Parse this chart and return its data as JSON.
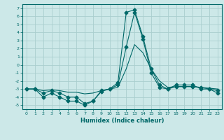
{
  "xlabel": "Humidex (Indice chaleur)",
  "x": [
    0,
    1,
    2,
    3,
    4,
    5,
    6,
    7,
    8,
    9,
    10,
    11,
    12,
    13,
    14,
    15,
    16,
    17,
    18,
    19,
    20,
    21,
    22,
    23
  ],
  "line1": [
    -3,
    -3,
    -4,
    -3.5,
    -4,
    -4.5,
    -4.5,
    -5,
    -4.5,
    -3.2,
    -3,
    -2.2,
    6.5,
    6.8,
    3.5,
    -0.5,
    -2.5,
    -3,
    -2.5,
    -2.5,
    -2.5,
    -3,
    -3,
    -3.5
  ],
  "line2": [
    -3,
    -3,
    -3.5,
    -3.2,
    -3.5,
    -4,
    -4,
    -4.8,
    -4.5,
    -3.3,
    -3,
    -2.5,
    2.2,
    6.5,
    3.2,
    -1,
    -2.8,
    -3,
    -2.7,
    -2.7,
    -2.7,
    -2.8,
    -3,
    -3.2
  ],
  "line3": [
    -3,
    -3,
    -3.2,
    -3.1,
    -3.2,
    -3.4,
    -3.4,
    -3.6,
    -3.5,
    -3.2,
    -3,
    -2.8,
    -0.5,
    2.5,
    1.5,
    -0.5,
    -2,
    -2.8,
    -2.7,
    -2.7,
    -2.7,
    -2.8,
    -2.9,
    -3.0
  ],
  "ylim": [
    -5.5,
    7.5
  ],
  "xlim": [
    -0.5,
    23.5
  ],
  "bg_color": "#cce8e8",
  "grid_color": "#aacece",
  "line_color": "#006868",
  "marker": "D",
  "marker_size": 2.5
}
